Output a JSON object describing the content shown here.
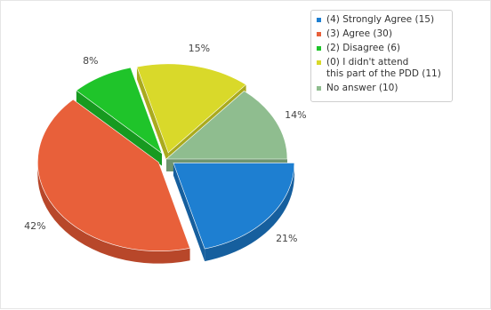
{
  "chart_data": {
    "type": "pie",
    "title": "",
    "slices": [
      {
        "label": "(4) Strongly Agree (15)",
        "value": 15,
        "percent_label": "21%",
        "color": "#1e7fd1",
        "side_color": "#165f9e",
        "exploded": true
      },
      {
        "label": "(3) Agree (30)",
        "value": 30,
        "percent_label": "42%",
        "color": "#e8603a",
        "side_color": "#b8472a",
        "exploded": true
      },
      {
        "label": "(2) Disagree (6)",
        "value": 6,
        "percent_label": "8%",
        "color": "#1fc42a",
        "side_color": "#179a20",
        "exploded": true
      },
      {
        "label": "(0)  I didn't attend\nthis part of the PDD (11)",
        "value": 11,
        "percent_label": "15%",
        "color": "#d9d92a",
        "side_color": "#aaaa1e",
        "exploded": true
      },
      {
        "label": "No answer (10)",
        "value": 10,
        "percent_label": "14%",
        "color": "#8fbd8f",
        "side_color": "#6f956f",
        "exploded": false
      }
    ],
    "legend_position": "top-right"
  }
}
